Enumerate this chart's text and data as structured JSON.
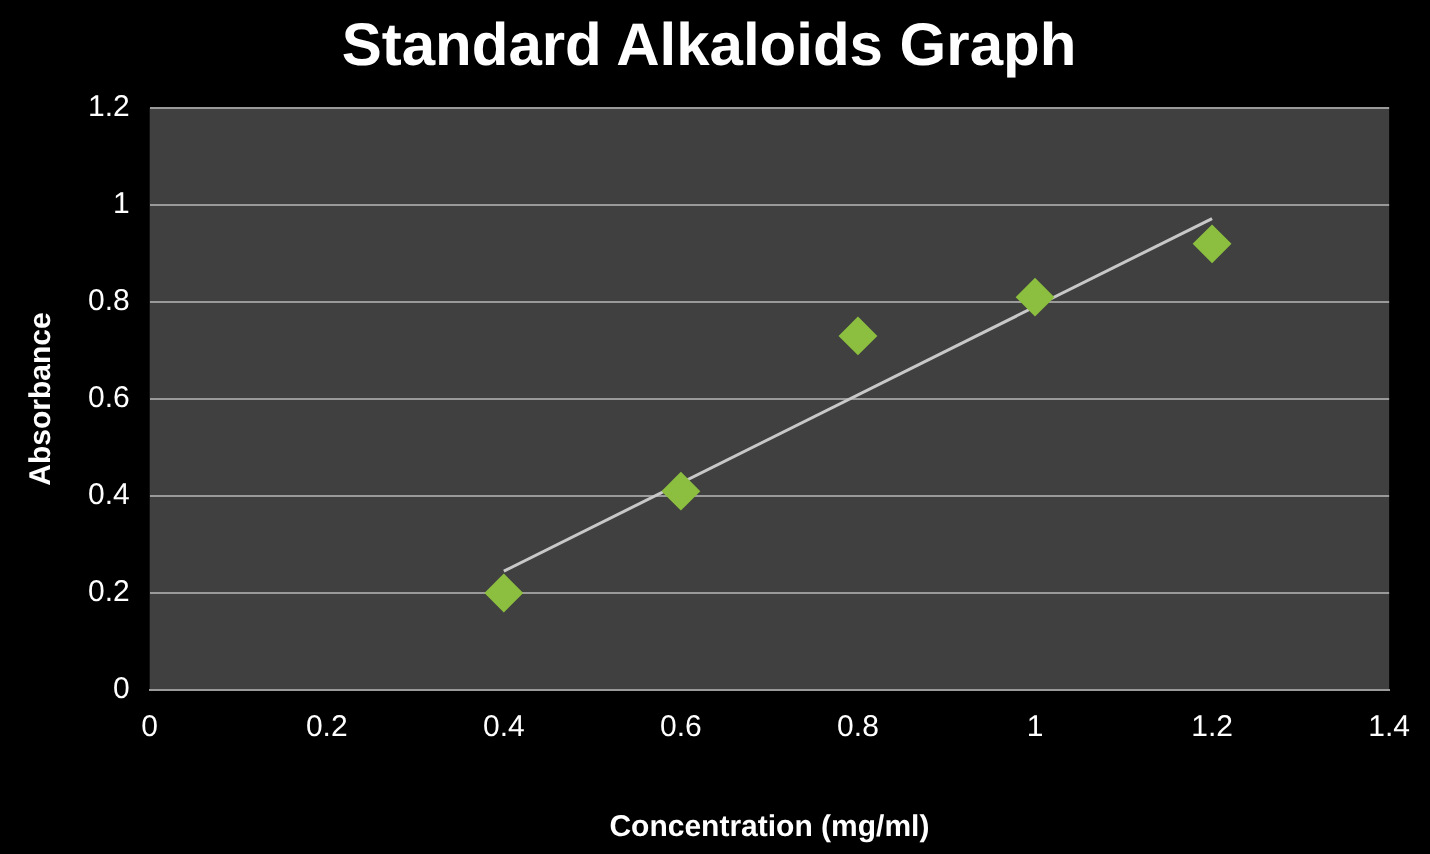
{
  "chart_data": {
    "type": "scatter",
    "title": "Standard Alkaloids Graph",
    "xlabel": "Concentration (mg/ml)",
    "ylabel": "Absorbance",
    "xlim": [
      0,
      1.4
    ],
    "xticks": [
      0,
      0.2,
      0.4,
      0.6,
      0.8,
      1,
      1.2,
      1.4
    ],
    "ylim": [
      0,
      1.2
    ],
    "yticks": [
      0,
      0.2,
      0.4,
      0.6,
      0.8,
      1,
      1.2
    ],
    "grid": "y",
    "legend": false,
    "marker": "diamond",
    "series": [
      {
        "type": "scatter",
        "color": "#8cbf3f",
        "x": [
          0.4,
          0.6,
          0.8,
          1,
          1.2
        ],
        "values": [
          0.2,
          0.41,
          0.73,
          0.81,
          0.92
        ]
      },
      {
        "type": "line",
        "marker": "none",
        "color": "#c8c8c8",
        "x": [
          0.4,
          1.2
        ],
        "values": [
          0.245,
          0.972
        ]
      }
    ]
  }
}
